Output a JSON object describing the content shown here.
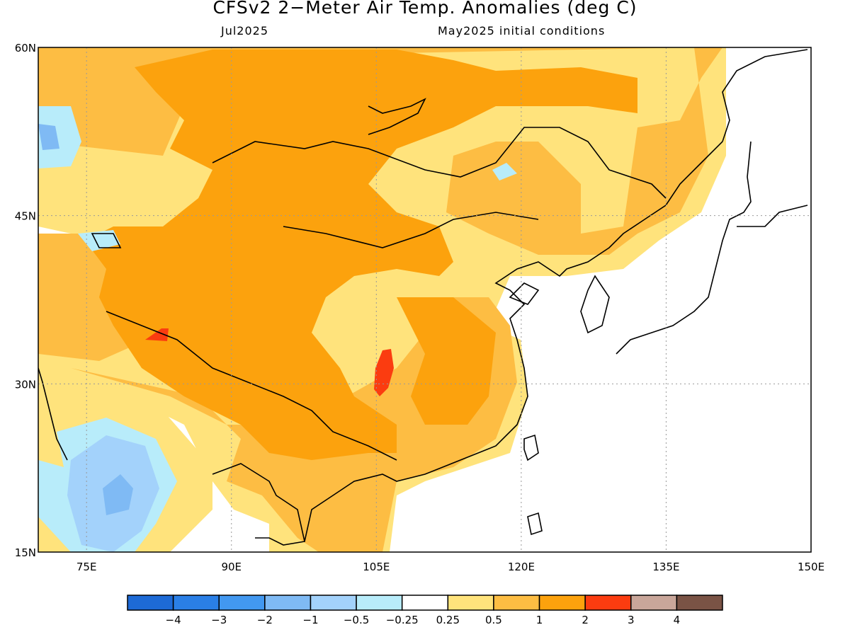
{
  "title": "CFSv2 2−Meter Air Temp. Anomalies (deg C)",
  "subtitle_left": "Jul2025",
  "subtitle_right": "May2025 initial conditions",
  "map": {
    "lat_range": [
      15,
      60
    ],
    "lon_range": [
      70,
      150
    ],
    "lat_ticks": [
      {
        "value": 60,
        "label": "60N"
      },
      {
        "value": 45,
        "label": "45N"
      },
      {
        "value": 30,
        "label": "30N"
      },
      {
        "value": 15,
        "label": "15N"
      }
    ],
    "lon_ticks": [
      {
        "value": 75,
        "label": "75E"
      },
      {
        "value": 90,
        "label": "90E"
      },
      {
        "value": 105,
        "label": "105E"
      },
      {
        "value": 120,
        "label": "120E"
      },
      {
        "value": 135,
        "label": "135E"
      },
      {
        "value": 150,
        "label": "150E"
      }
    ],
    "gridlines": true,
    "colors": {
      "land_neutral": "#ffffff",
      "ocean": "#ffffff",
      "coastline": "#000000"
    }
  },
  "colorbar": {
    "bins": [
      {
        "color": "#1d6ad6"
      },
      {
        "color": "#2a7fe6"
      },
      {
        "color": "#4298f0"
      },
      {
        "color": "#7fbaf4"
      },
      {
        "color": "#a3d2fb"
      },
      {
        "color": "#b8ecfa"
      },
      {
        "color": "#ffffff"
      },
      {
        "color": "#ffe37c"
      },
      {
        "color": "#fdbd43"
      },
      {
        "color": "#fca20d"
      },
      {
        "color": "#fb3c10"
      },
      {
        "color": "#c9a69a"
      },
      {
        "color": "#7a5345"
      }
    ],
    "labels": [
      "−4",
      "−3",
      "−2",
      "−1",
      "−0.5",
      "−0.25",
      "0.25",
      "0.5",
      "1",
      "2",
      "3",
      "4"
    ]
  }
}
